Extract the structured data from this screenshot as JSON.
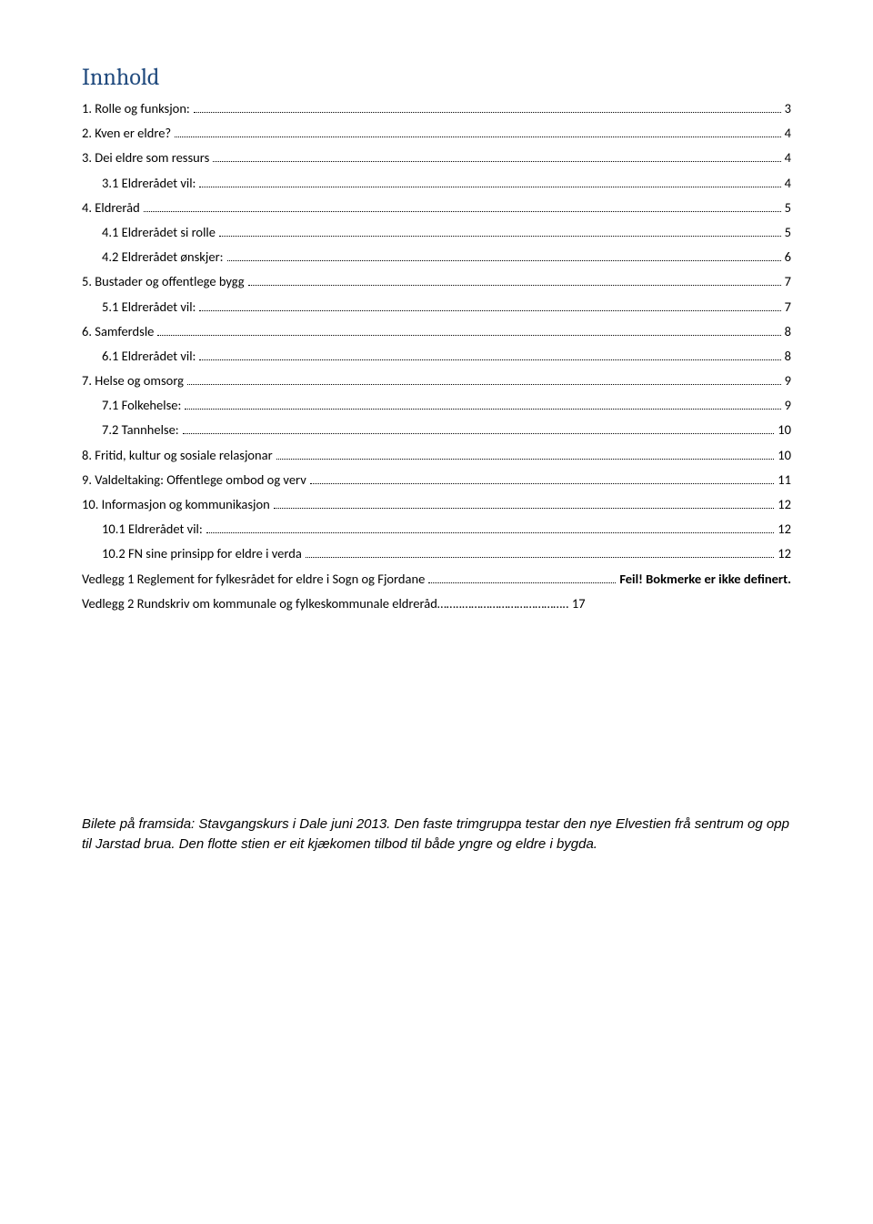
{
  "heading": "Innhold",
  "toc": [
    {
      "label": "1. Rolle og funksjon:",
      "page": "3",
      "indent": 0
    },
    {
      "label": "2. Kven er eldre?",
      "page": "4",
      "indent": 0
    },
    {
      "label": "3. Dei eldre som ressurs",
      "page": "4",
      "indent": 0
    },
    {
      "label": "3.1 Eldrerådet vil:",
      "page": "4",
      "indent": 1
    },
    {
      "label": "4. Eldreråd",
      "page": "5",
      "indent": 0
    },
    {
      "label": "4.1 Eldrerådet si rolle",
      "page": "5",
      "indent": 1
    },
    {
      "label": "4.2 Eldrerådet ønskjer:",
      "page": "6",
      "indent": 1
    },
    {
      "label": "5. Bustader og offentlege bygg",
      "page": "7",
      "indent": 0
    },
    {
      "label": "5.1 Eldrerådet vil:",
      "page": "7",
      "indent": 1
    },
    {
      "label": "6. Samferdsle",
      "page": "8",
      "indent": 0
    },
    {
      "label": "6.1 Eldrerådet vil:",
      "page": "8",
      "indent": 1
    },
    {
      "label": "7. Helse og omsorg",
      "page": "9",
      "indent": 0
    },
    {
      "label": "7.1 Folkehelse:",
      "page": "9",
      "indent": 1
    },
    {
      "label": "7.2 Tannhelse:",
      "page": "10",
      "indent": 1
    },
    {
      "label": "8. Fritid, kultur og sosiale relasjonar",
      "page": "10",
      "indent": 0
    },
    {
      "label": "9. Valdeltaking: Offentlege ombod og verv",
      "page": "11",
      "indent": 0
    },
    {
      "label": "10. Informasjon og kommunikasjon",
      "page": "12",
      "indent": 0
    },
    {
      "label": "10.1 Eldrerådet vil:",
      "page": "12",
      "indent": 1
    },
    {
      "label": "10.2 FN sine prinsipp for eldre i verda",
      "page": "12",
      "indent": 1
    },
    {
      "label": "Vedlegg 1 Reglement for fylkesrådet for eldre i Sogn og Fjordane",
      "page": "Feil! Bokmerke er ikke definert.",
      "indent": 0,
      "bold_page": true
    },
    {
      "label": "Vedlegg 2 Rundskriv om kommunale og fylkeskommunale eldreråd……..…………………………….. 17",
      "page": "",
      "indent": 0,
      "no_dots": true
    }
  ],
  "footer_note": "Bilete på framsida: Stavgangskurs i Dale juni 2013. Den faste trimgruppa testar den nye Elvestien frå sentrum og opp til Jarstad brua. Den flotte stien er eit kjækomen tilbod til både yngre og eldre i bygda.",
  "colors": {
    "heading": "#1f497d",
    "text": "#000000",
    "background": "#ffffff"
  }
}
